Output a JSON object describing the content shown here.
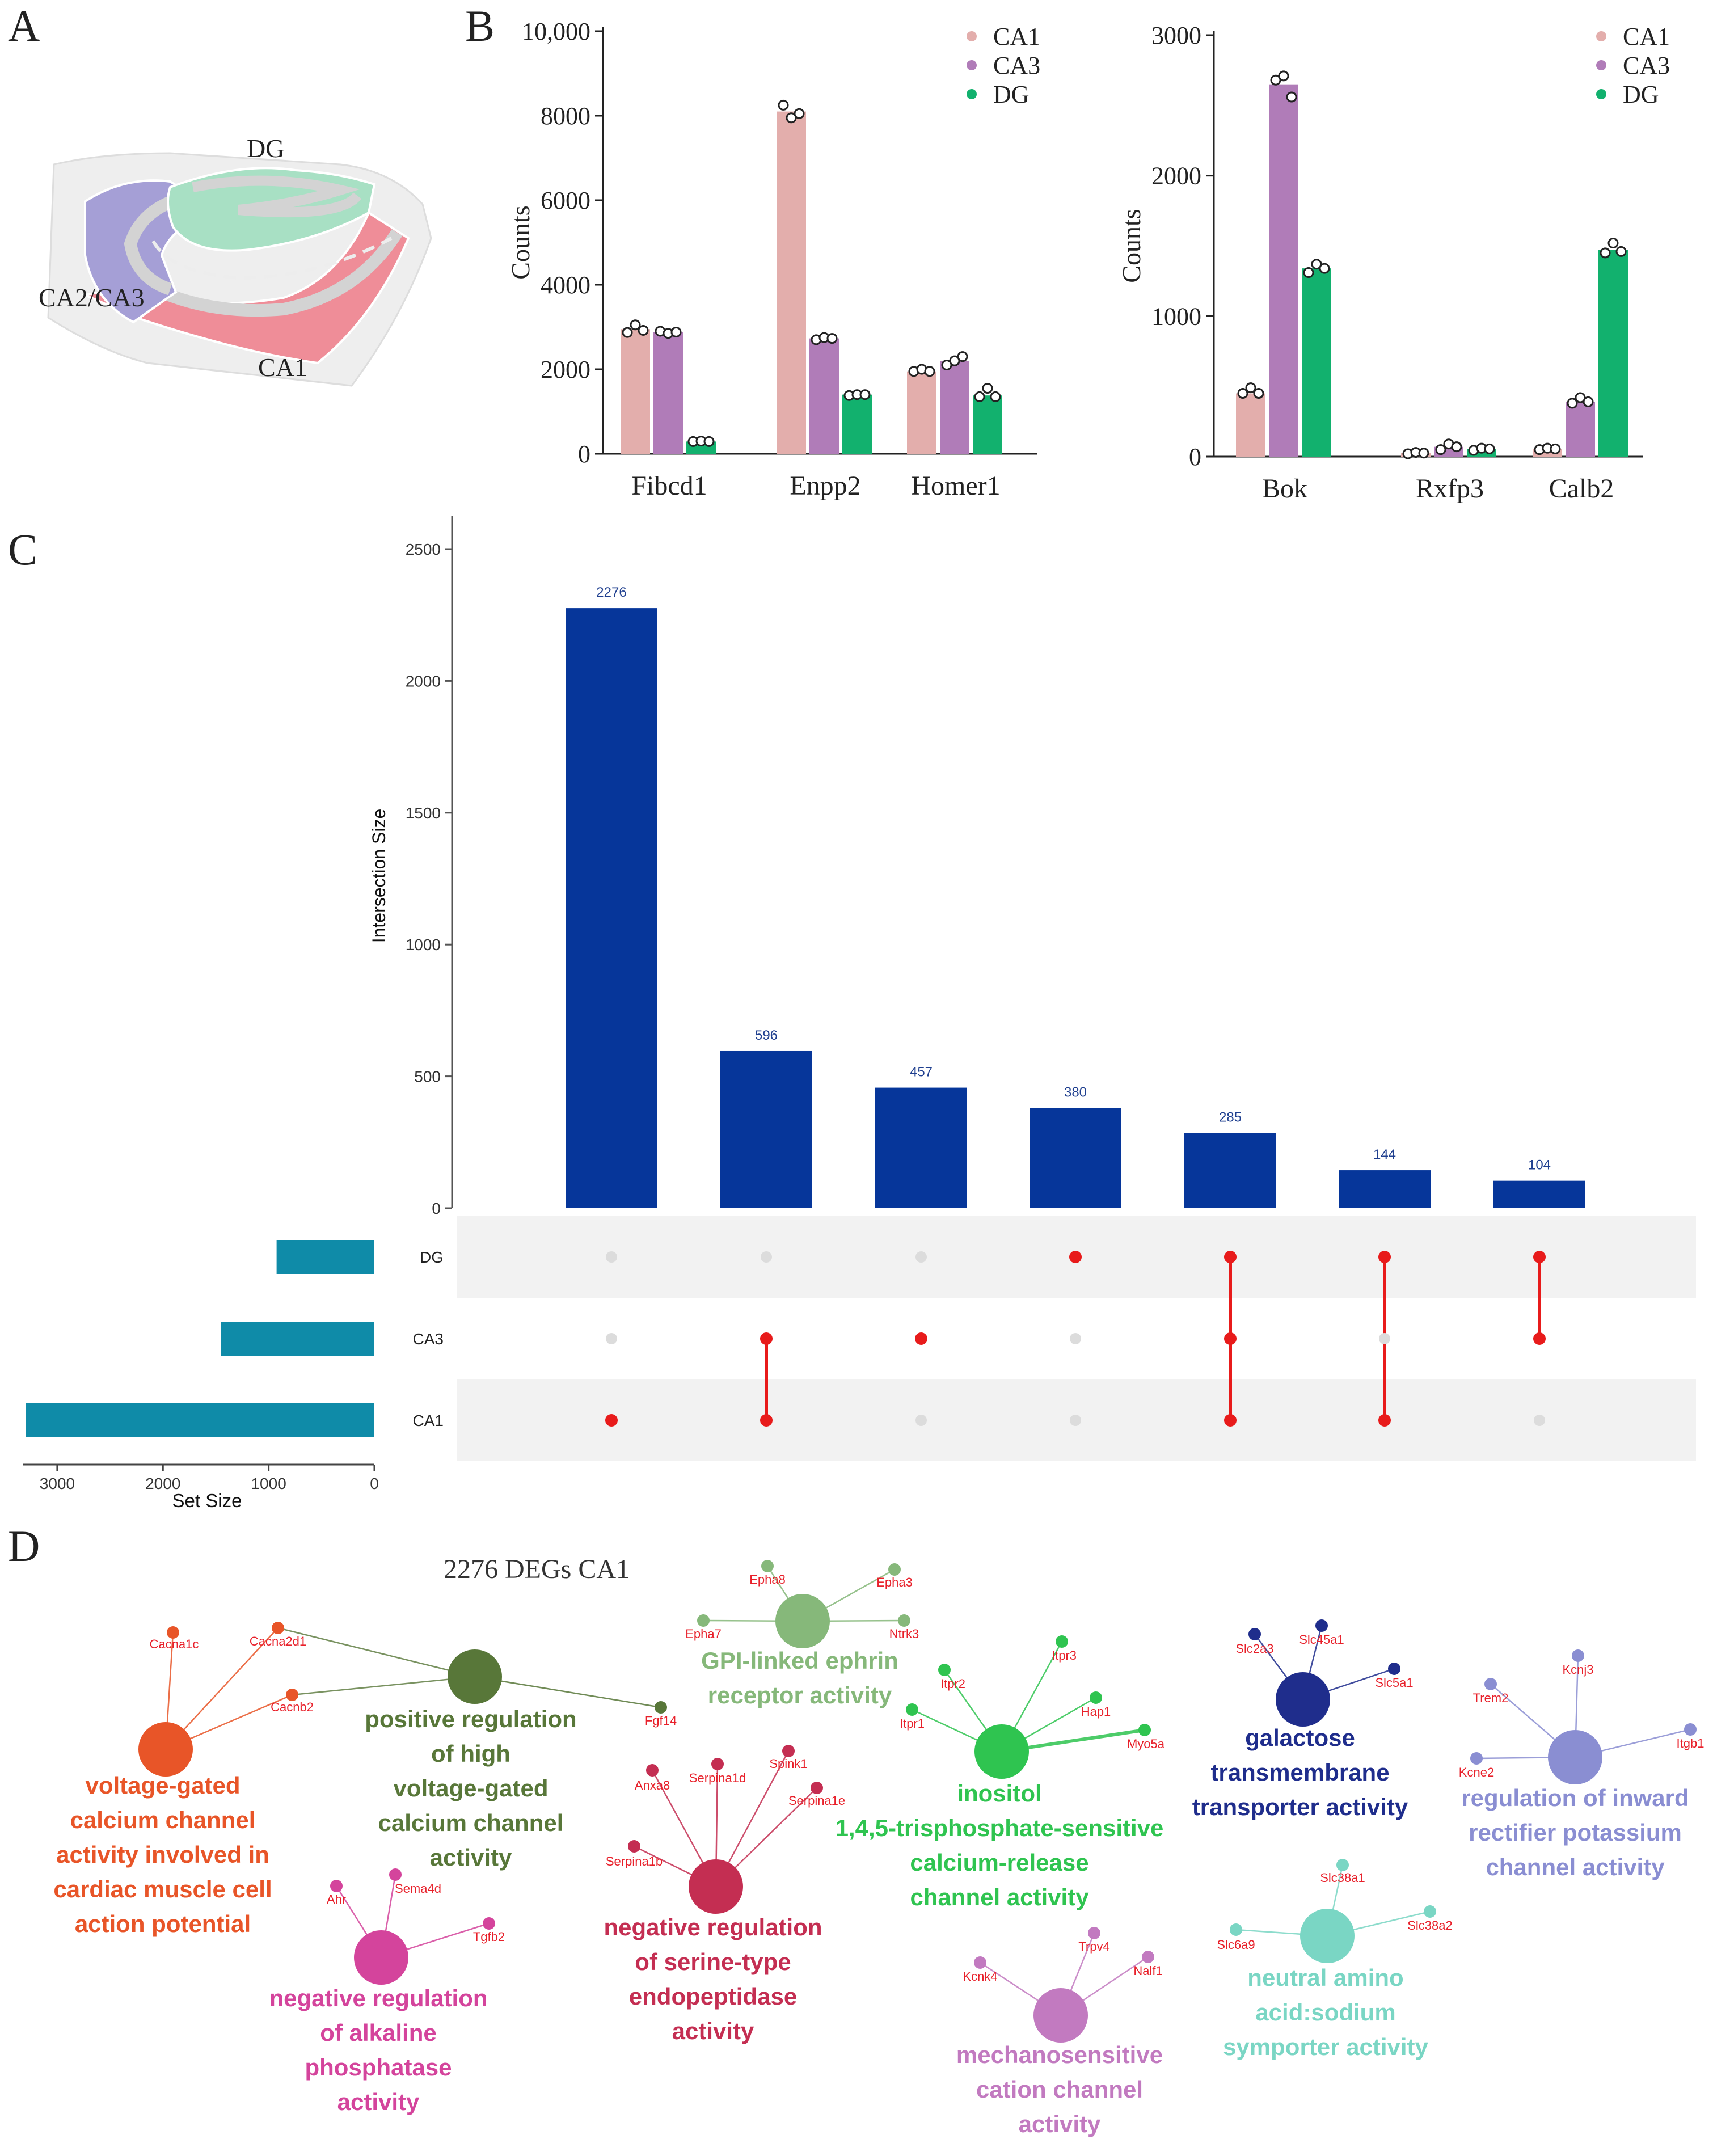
{
  "panel_labels": {
    "a": "A",
    "b": "B",
    "c": "C",
    "d": "D"
  },
  "panelA": {
    "regions": {
      "dg": "DG",
      "ca23": "CA2/CA3",
      "ca1": "CA1"
    },
    "colors": {
      "dg": "#a8e0c4",
      "ca23": "#a59fd6",
      "ca1": "#ef8d98",
      "tissue": "#eeeeee",
      "layer": "#d3d3d3"
    }
  },
  "chart_data": [
    {
      "type": "bar",
      "title": "",
      "ylabel": "Counts",
      "xlabel": "",
      "ylim": [
        0,
        10000
      ],
      "yticks": [
        0,
        2000,
        4000,
        6000,
        8000,
        10000
      ],
      "ytick_labels": [
        "0",
        "2000",
        "4000",
        "6000",
        "8000",
        "10,000"
      ],
      "categories": [
        "Fibcd1",
        "Enpp2",
        "Homer1"
      ],
      "series": [
        {
          "name": "CA1",
          "color": "#e3aeac",
          "values": [
            2950,
            8100,
            1950
          ],
          "points": [
            [
              2870,
              3050,
              2920
            ],
            [
              8250,
              7950,
              8050
            ],
            [
              1950,
              2000,
              1950
            ]
          ]
        },
        {
          "name": "CA3",
          "color": "#b07cb8",
          "values": [
            2880,
            2730,
            2200
          ],
          "points": [
            [
              2900,
              2850,
              2880
            ],
            [
              2700,
              2750,
              2730
            ],
            [
              2100,
              2200,
              2300
            ]
          ]
        },
        {
          "name": "DG",
          "color": "#12b16e",
          "values": [
            290,
            1400,
            1380
          ],
          "points": [
            [
              290,
              300,
              290
            ],
            [
              1380,
              1400,
              1400
            ],
            [
              1350,
              1550,
              1350
            ]
          ]
        }
      ],
      "legend": [
        "CA1",
        "CA3",
        "DG"
      ]
    },
    {
      "type": "bar",
      "title": "",
      "ylabel": "Counts",
      "xlabel": "",
      "ylim": [
        0,
        3000
      ],
      "yticks": [
        0,
        1000,
        2000,
        3000
      ],
      "ytick_labels": [
        "0",
        "1000",
        "2000",
        "3000"
      ],
      "categories": [
        "Bok",
        "Rxfp3",
        "Calb2"
      ],
      "series": [
        {
          "name": "CA1",
          "color": "#e3aeac",
          "values": [
            450,
            25,
            55
          ],
          "points": [
            [
              450,
              490,
              450
            ],
            [
              20,
              30,
              25
            ],
            [
              50,
              60,
              55
            ]
          ]
        },
        {
          "name": "CA3",
          "color": "#b07cb8",
          "values": [
            2650,
            70,
            390
          ],
          "points": [
            [
              2680,
              2710,
              2560
            ],
            [
              50,
              90,
              70
            ],
            [
              380,
              420,
              390
            ]
          ]
        },
        {
          "name": "DG",
          "color": "#12b16e",
          "values": [
            1340,
            55,
            1470
          ],
          "points": [
            [
              1310,
              1370,
              1340
            ],
            [
              45,
              60,
              55
            ],
            [
              1450,
              1520,
              1460
            ]
          ]
        }
      ],
      "legend": [
        "CA1",
        "CA3",
        "DG"
      ]
    },
    {
      "type": "bar",
      "title": "",
      "ylabel": "Intersection Size",
      "xlabel": "",
      "ylim": [
        0,
        2500
      ],
      "yticks": [
        0,
        500,
        1000,
        1500,
        2000,
        2500
      ],
      "ytick_labels": [
        "0",
        "500",
        "1000",
        "1500",
        "2000",
        "2500"
      ],
      "categories": [
        "CA1",
        "CA1 & CA3",
        "CA3",
        "DG",
        "DG & CA3 & CA1",
        "DG & CA1",
        "DG & CA3"
      ],
      "values": [
        2276,
        596,
        457,
        380,
        285,
        144,
        104
      ],
      "value_labels": [
        "2276",
        "596",
        "457",
        "380",
        "285",
        "144",
        "104"
      ],
      "bar_color": "#06369a",
      "sets": [
        "DG",
        "CA3",
        "CA1"
      ],
      "memberships": [
        [
          "CA1"
        ],
        [
          "CA3",
          "CA1"
        ],
        [
          "CA3"
        ],
        [
          "DG"
        ],
        [
          "DG",
          "CA3",
          "CA1"
        ],
        [
          "DG",
          "CA1"
        ],
        [
          "DG",
          "CA3"
        ]
      ],
      "dot_active_color": "#e81b1b",
      "dot_inactive_color": "#dcdcdc"
    },
    {
      "type": "bar",
      "title": "",
      "xlabel": "Set Size",
      "ylabel": "",
      "xlim": [
        3300,
        0
      ],
      "xticks": [
        3000,
        2000,
        1000,
        0
      ],
      "xtick_labels": [
        "3000",
        "2000",
        "1000",
        "0"
      ],
      "categories": [
        "DG",
        "CA3",
        "CA1"
      ],
      "values": [
        925,
        1450,
        3300
      ],
      "bar_color": "#0f8ba8"
    }
  ],
  "network": {
    "title": "2276 DEGs CA1",
    "clusters": [
      {
        "id": "vgcc",
        "color": "#e85528",
        "term": [
          "voltage-gated",
          "calcium channel",
          "activity involved in",
          "cardiac muscle cell",
          "action potential"
        ],
        "genes": [
          "Cacna1c",
          "Cacna2d1",
          "Cacnb2"
        ]
      },
      {
        "id": "posreg",
        "color": "#587739",
        "term": [
          "positive regulation",
          "of high",
          "voltage-gated",
          "calcium channel",
          "activity"
        ],
        "genes": [
          "Fgf14"
        ]
      },
      {
        "id": "gpi",
        "color": "#86b87a",
        "term": [
          "GPI-linked ephrin",
          "receptor activity"
        ],
        "genes": [
          "Epha8",
          "Epha3",
          "Epha7",
          "Ntrk3"
        ]
      },
      {
        "id": "serine",
        "color": "#c42e52",
        "term": [
          "negative regulation",
          "of serine-type",
          "endopeptidase",
          "activity"
        ],
        "genes": [
          "Anxa8",
          "Serpina1d",
          "Spink1",
          "Serpina1e",
          "Serpina1b"
        ]
      },
      {
        "id": "inositol",
        "color": "#2fc450",
        "term": [
          "inositol",
          "1,4,5-trisphosphate-sensitive",
          "calcium-release",
          "channel activity"
        ],
        "genes": [
          "Itpr2",
          "Itpr3",
          "Itpr1",
          "Hap1",
          "Myo5a"
        ]
      },
      {
        "id": "galactose",
        "color": "#1f2d8c",
        "term": [
          "galactose",
          "transmembrane",
          "transporter activity"
        ],
        "genes": [
          "Slc2a3",
          "Slc45a1",
          "Slc5a1"
        ]
      },
      {
        "id": "inward",
        "color": "#8a8ed2",
        "term": [
          "regulation of inward",
          "rectifier potassium",
          "channel activity"
        ],
        "genes": [
          "Kcnj3",
          "Trem2",
          "Itgb1",
          "Kcne2"
        ]
      },
      {
        "id": "alkaline",
        "color": "#d4449c",
        "term": [
          "negative regulation",
          "of alkaline",
          "phosphatase",
          "activity"
        ],
        "genes": [
          "Ahr",
          "Sema4d",
          "Tgfb2"
        ]
      },
      {
        "id": "mechano",
        "color": "#c27ac0",
        "term": [
          "mechanosensitive",
          "cation channel",
          "activity"
        ],
        "genes": [
          "Trpv4",
          "Kcnk4",
          "Nalf1"
        ]
      },
      {
        "id": "neutral",
        "color": "#7ad6c4",
        "term": [
          "neutral amino",
          "acid:sodium",
          "symporter activity"
        ],
        "genes": [
          "Slc38a1",
          "Slc6a9",
          "Slc38a2"
        ]
      }
    ]
  }
}
